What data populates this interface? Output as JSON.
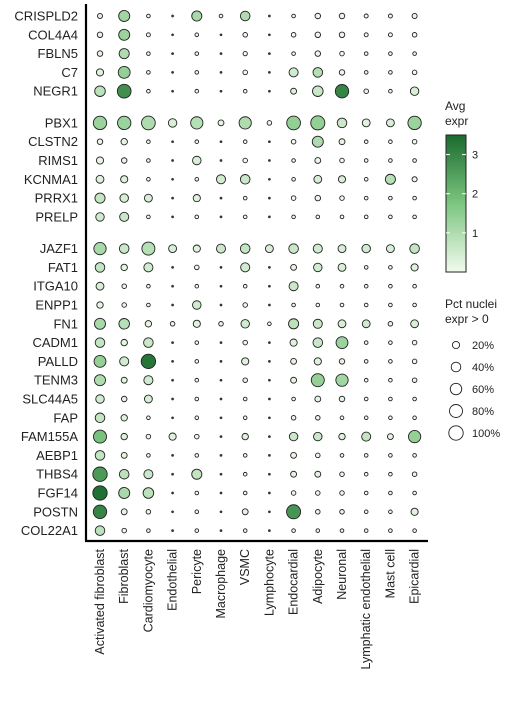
{
  "chart_data": {
    "type": "dotplot",
    "color_legend": {
      "title": [
        "Avg",
        "expr"
      ],
      "ticks": [
        1,
        2,
        3
      ],
      "range": [
        0,
        3.5
      ],
      "low_color": "#f2fbef",
      "high_color": "#1a6b2f"
    },
    "size_legend": {
      "title": [
        "Pct nuclei",
        "expr > 0"
      ],
      "entries": [
        "20%",
        "40%",
        "60%",
        "80%",
        "100%"
      ],
      "values": [
        20,
        40,
        60,
        80,
        100
      ]
    },
    "cell_types": [
      "Activated fibroblast",
      "Fibroblast",
      "Cardiomyocyte",
      "Endothelial",
      "Pericyte",
      "Macrophage",
      "VSMC",
      "Lymphocyte",
      "Endocardial",
      "Adipocyte",
      "Neuronal",
      "Lymphatic endothelial",
      "Mast cell",
      "Epicardial"
    ],
    "genes": [
      "CRISPLD2",
      "COL4A4",
      "FBLN5",
      "C7",
      "NEGR1",
      "PBX1",
      "CLSTN2",
      "RIMS1",
      "KCNMA1",
      "PRRX1",
      "PRELP",
      "JAZF1",
      "FAT1",
      "ITGA10",
      "ENPP1",
      "FN1",
      "CADM1",
      "PALLD",
      "TENM3",
      "SLC44A5",
      "FAP",
      "FAM155A",
      "AEBP1",
      "THBS4",
      "FGF14",
      "POSTN",
      "COL22A1"
    ],
    "groups": [
      5,
      6,
      16
    ],
    "pct": [
      [
        8,
        55,
        3,
        1,
        45,
        3,
        40,
        1,
        3,
        10,
        10,
        4,
        4,
        8
      ],
      [
        10,
        55,
        4,
        1,
        3,
        1,
        6,
        1,
        6,
        10,
        10,
        4,
        4,
        6
      ],
      [
        10,
        45,
        3,
        1,
        3,
        1,
        5,
        1,
        3,
        10,
        6,
        3,
        3,
        3
      ],
      [
        20,
        65,
        3,
        1,
        3,
        1,
        6,
        1,
        35,
        40,
        10,
        3,
        3,
        6
      ],
      [
        50,
        90,
        3,
        1,
        3,
        1,
        3,
        1,
        12,
        50,
        85,
        6,
        3,
        30
      ],
      [
        85,
        85,
        90,
        30,
        70,
        12,
        70,
        6,
        90,
        95,
        40,
        25,
        25,
        85
      ],
      [
        10,
        15,
        3,
        1,
        3,
        1,
        3,
        1,
        6,
        55,
        12,
        3,
        3,
        6
      ],
      [
        20,
        10,
        3,
        1,
        30,
        1,
        6,
        1,
        3,
        12,
        6,
        3,
        3,
        3
      ],
      [
        25,
        20,
        3,
        1,
        3,
        35,
        40,
        1,
        3,
        25,
        20,
        3,
        45,
        8
      ],
      [
        45,
        30,
        25,
        1,
        20,
        1,
        3,
        1,
        6,
        10,
        6,
        3,
        3,
        3
      ],
      [
        30,
        35,
        3,
        1,
        3,
        1,
        3,
        1,
        3,
        3,
        3,
        3,
        3,
        3
      ],
      [
        70,
        40,
        80,
        25,
        20,
        35,
        40,
        25,
        40,
        35,
        25,
        30,
        25,
        40
      ],
      [
        40,
        15,
        35,
        1,
        6,
        1,
        35,
        1,
        12,
        30,
        25,
        3,
        3,
        20
      ],
      [
        25,
        6,
        3,
        1,
        3,
        1,
        3,
        1,
        35,
        3,
        3,
        3,
        3,
        3
      ],
      [
        15,
        6,
        3,
        1,
        30,
        1,
        6,
        1,
        3,
        3,
        3,
        3,
        3,
        3
      ],
      [
        55,
        50,
        15,
        6,
        20,
        6,
        30,
        3,
        45,
        35,
        25,
        25,
        6,
        25
      ],
      [
        40,
        15,
        40,
        1,
        3,
        1,
        6,
        1,
        20,
        40,
        65,
        3,
        3,
        6
      ],
      [
        65,
        35,
        100,
        1,
        3,
        1,
        20,
        1,
        12,
        20,
        10,
        3,
        3,
        6
      ],
      [
        55,
        12,
        35,
        1,
        3,
        1,
        6,
        1,
        12,
        80,
        70,
        3,
        3,
        6
      ],
      [
        30,
        10,
        25,
        1,
        3,
        1,
        3,
        1,
        3,
        12,
        10,
        3,
        3,
        3
      ],
      [
        40,
        15,
        3,
        1,
        3,
        1,
        3,
        1,
        6,
        6,
        3,
        3,
        3,
        3
      ],
      [
        80,
        15,
        6,
        20,
        6,
        1,
        15,
        1,
        30,
        30,
        15,
        35,
        12,
        70
      ],
      [
        40,
        12,
        3,
        1,
        3,
        1,
        3,
        1,
        12,
        6,
        3,
        3,
        3,
        3
      ],
      [
        100,
        40,
        35,
        1,
        45,
        1,
        3,
        1,
        12,
        12,
        6,
        3,
        3,
        6
      ],
      [
        100,
        55,
        50,
        1,
        3,
        1,
        3,
        1,
        6,
        6,
        6,
        3,
        3,
        3
      ],
      [
        85,
        12,
        6,
        1,
        3,
        1,
        12,
        1,
        95,
        6,
        6,
        3,
        3,
        20
      ],
      [
        40,
        6,
        3,
        1,
        3,
        1,
        3,
        1,
        3,
        3,
        3,
        3,
        3,
        3
      ]
    ],
    "avg": [
      [
        0.3,
        1.2,
        0,
        0,
        1.1,
        0,
        1.0,
        0,
        0,
        0.1,
        0.1,
        0,
        0,
        0.1
      ],
      [
        0.2,
        1.3,
        0,
        0,
        0,
        0,
        0,
        0,
        0,
        0.1,
        0.1,
        0,
        0,
        0
      ],
      [
        0.2,
        1.0,
        0,
        0,
        0,
        0,
        0,
        0,
        0,
        0.1,
        0,
        0,
        0,
        0
      ],
      [
        0.3,
        1.4,
        0,
        0,
        0,
        0,
        0,
        0,
        0.5,
        0.9,
        0.1,
        0,
        0,
        0
      ],
      [
        0.8,
        2.8,
        0,
        0,
        0,
        0,
        0,
        0,
        0.3,
        0.6,
        3.0,
        0.1,
        0,
        0.4
      ],
      [
        1.3,
        1.3,
        1.0,
        0.4,
        0.9,
        0.2,
        1.0,
        0.1,
        1.4,
        1.4,
        0.6,
        0.3,
        0.4,
        1.3
      ],
      [
        0.1,
        0.2,
        0,
        0,
        0,
        0,
        0,
        0,
        0,
        1.0,
        0.2,
        0,
        0,
        0
      ],
      [
        0.2,
        0.1,
        0,
        0,
        0.4,
        0,
        0,
        0,
        0,
        0.1,
        0,
        0,
        0,
        0
      ],
      [
        0.3,
        0.3,
        0,
        0,
        0,
        0.5,
        0.6,
        0,
        0,
        0.4,
        0.4,
        0,
        0.9,
        0
      ],
      [
        0.7,
        0.4,
        0.4,
        0,
        0.3,
        0,
        0,
        0,
        0,
        0.1,
        0,
        0,
        0,
        0
      ],
      [
        0.5,
        0.6,
        0,
        0,
        0,
        0,
        0,
        0,
        0,
        0,
        0,
        0,
        0,
        0
      ],
      [
        1.1,
        0.6,
        0.9,
        0.4,
        0.3,
        0.6,
        0.7,
        0.4,
        0.6,
        0.5,
        0.4,
        0.5,
        0.4,
        0.7
      ],
      [
        0.7,
        0.2,
        0.5,
        0,
        0.1,
        0,
        0.5,
        0,
        0.2,
        0.5,
        0.4,
        0,
        0,
        0.3
      ],
      [
        0.4,
        0.1,
        0,
        0,
        0,
        0,
        0,
        0,
        0.6,
        0,
        0,
        0,
        0,
        0
      ],
      [
        0.2,
        0.1,
        0,
        0,
        0.5,
        0,
        0.1,
        0,
        0,
        0,
        0,
        0,
        0,
        0
      ],
      [
        1.1,
        0.9,
        0.2,
        0.1,
        0.3,
        0.1,
        0.5,
        0,
        0.8,
        0.6,
        0.4,
        0.5,
        0.1,
        0.4
      ],
      [
        0.7,
        0.2,
        0.6,
        0,
        0,
        0,
        0.1,
        0,
        0.3,
        0.6,
        1.3,
        0,
        0,
        0.1
      ],
      [
        1.4,
        0.5,
        3.3,
        0,
        0,
        0,
        0.3,
        0,
        0.2,
        0.3,
        0.2,
        0,
        0,
        0.1
      ],
      [
        1.0,
        0.2,
        0.5,
        0,
        0,
        0,
        0.1,
        0,
        0.2,
        1.4,
        1.2,
        0,
        0,
        0.1
      ],
      [
        0.5,
        0.2,
        0.4,
        0,
        0,
        0,
        0,
        0,
        0,
        0.2,
        0.2,
        0,
        0,
        0
      ],
      [
        0.7,
        0.3,
        0,
        0,
        0,
        0,
        0,
        0,
        0.1,
        0.1,
        0,
        0,
        0,
        0
      ],
      [
        1.8,
        0.3,
        0.1,
        0.3,
        0.1,
        0,
        0.3,
        0,
        0.6,
        0.6,
        0.3,
        0.7,
        0.2,
        1.4
      ],
      [
        0.7,
        0.2,
        0,
        0,
        0,
        0,
        0,
        0,
        0.2,
        0.1,
        0,
        0,
        0,
        0
      ],
      [
        2.6,
        0.8,
        0.6,
        0,
        0.7,
        0,
        0,
        0,
        0.2,
        0.2,
        0.1,
        0,
        0,
        0.1
      ],
      [
        3.4,
        1.1,
        0.8,
        0,
        0,
        0,
        0,
        0,
        0.1,
        0.1,
        0.1,
        0,
        0,
        0
      ],
      [
        3.0,
        0.2,
        0.1,
        0,
        0,
        0,
        0.2,
        0,
        2.7,
        0.1,
        0.1,
        0,
        0,
        0.3
      ],
      [
        0.8,
        0.1,
        0,
        0,
        0,
        0,
        0,
        0,
        0,
        0,
        0,
        0,
        0,
        0
      ]
    ]
  }
}
